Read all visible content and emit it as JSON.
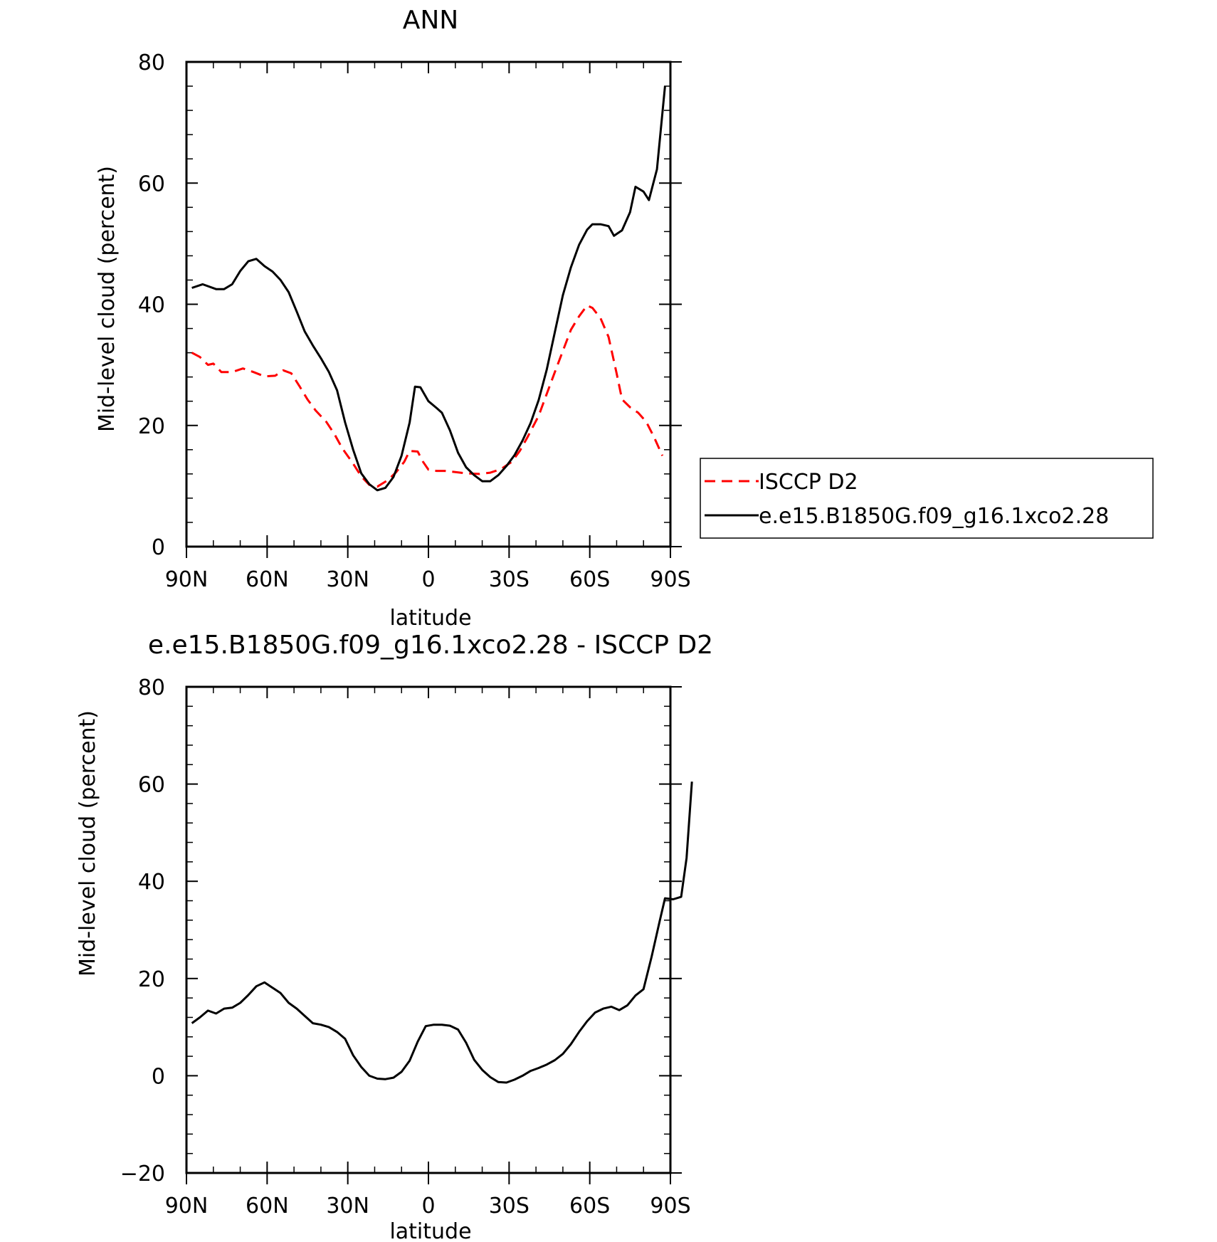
{
  "chart_data": [
    {
      "type": "line",
      "title": "ANN",
      "xlabel": "latitude",
      "ylabel": "Mid-level cloud (percent)",
      "xlim": [
        90,
        -90
      ],
      "ylim": [
        0,
        80
      ],
      "x_ticks": [
        {
          "value": 90,
          "label": "90N"
        },
        {
          "value": 60,
          "label": "60N"
        },
        {
          "value": 30,
          "label": "30N"
        },
        {
          "value": 0,
          "label": "0"
        },
        {
          "value": -30,
          "label": "30S"
        },
        {
          "value": -60,
          "label": "60S"
        },
        {
          "value": -90,
          "label": "90S"
        }
      ],
      "y_ticks": [
        {
          "value": 0,
          "label": "0"
        },
        {
          "value": 20,
          "label": "20"
        },
        {
          "value": 40,
          "label": "40"
        },
        {
          "value": 60,
          "label": "60"
        },
        {
          "value": 80,
          "label": "80"
        }
      ],
      "grid": false,
      "legend_position": "right",
      "series": [
        {
          "name": "ISCCP D2",
          "color": "#ff0000",
          "style": "dashed",
          "points": [
            [
              88,
              32
            ],
            [
              85,
              31.3
            ],
            [
              82,
              30
            ],
            [
              80,
              30.2
            ],
            [
              77,
              28.8
            ],
            [
              73,
              28.8
            ],
            [
              69,
              29.4
            ],
            [
              65,
              28.8
            ],
            [
              61,
              28.1
            ],
            [
              57,
              28.2
            ],
            [
              54,
              29.1
            ],
            [
              51,
              28.6
            ],
            [
              48,
              26.5
            ],
            [
              45,
              24.3
            ],
            [
              42,
              22.5
            ],
            [
              38,
              20.6
            ],
            [
              35,
              18.6
            ],
            [
              32,
              16.2
            ],
            [
              28,
              13.7
            ],
            [
              25,
              11.6
            ],
            [
              22,
              10.2
            ],
            [
              19,
              9.9
            ],
            [
              15,
              11
            ],
            [
              12,
              12.3
            ],
            [
              9,
              14
            ],
            [
              7,
              15.8
            ],
            [
              4,
              15.7
            ],
            [
              2,
              14
            ],
            [
              0,
              12.7
            ],
            [
              -3,
              12.5
            ],
            [
              -6,
              12.5
            ],
            [
              -10,
              12.3
            ],
            [
              -14,
              12.1
            ],
            [
              -19,
              12
            ],
            [
              -23,
              12.2
            ],
            [
              -27,
              12.8
            ],
            [
              -31,
              14
            ],
            [
              -34,
              15.8
            ],
            [
              -37,
              18.2
            ],
            [
              -41,
              21.6
            ],
            [
              -44,
              25.2
            ],
            [
              -47,
              28.8
            ],
            [
              -50,
              32.3
            ],
            [
              -53,
              35.8
            ],
            [
              -56,
              38
            ],
            [
              -59,
              39.8
            ],
            [
              -61,
              39.4
            ],
            [
              -64,
              37.7
            ],
            [
              -67,
              34.6
            ],
            [
              -70,
              28.6
            ],
            [
              -72,
              24.3
            ],
            [
              -75,
              23
            ],
            [
              -78,
              22.1
            ],
            [
              -81,
              20.6
            ],
            [
              -84,
              18
            ],
            [
              -87,
              15
            ]
          ]
        },
        {
          "name": "e.e15.B1850G.f09_g16.1xco2.28",
          "color": "#000000",
          "style": "solid",
          "points": [
            [
              88,
              42.7
            ],
            [
              84,
              43.3
            ],
            [
              79,
              42.5
            ],
            [
              76,
              42.5
            ],
            [
              73,
              43.3
            ],
            [
              70,
              45.5
            ],
            [
              67,
              47.1
            ],
            [
              64,
              47.5
            ],
            [
              61,
              46.3
            ],
            [
              58,
              45.4
            ],
            [
              55,
              44
            ],
            [
              52,
              42
            ],
            [
              49,
              38.8
            ],
            [
              46,
              35.5
            ],
            [
              43,
              33.2
            ],
            [
              40,
              31.1
            ],
            [
              37,
              28.8
            ],
            [
              34,
              25.8
            ],
            [
              31,
              20.5
            ],
            [
              28,
              16
            ],
            [
              25,
              12.1
            ],
            [
              22,
              10.3
            ],
            [
              19,
              9.3
            ],
            [
              16,
              9.7
            ],
            [
              13,
              11.5
            ],
            [
              10,
              15
            ],
            [
              7,
              20.5
            ],
            [
              5,
              26.4
            ],
            [
              3,
              26.3
            ],
            [
              0,
              24
            ],
            [
              -3,
              22.9
            ],
            [
              -5,
              22.1
            ],
            [
              -8,
              19.2
            ],
            [
              -11,
              15.5
            ],
            [
              -14,
              13.1
            ],
            [
              -17,
              11.8
            ],
            [
              -20,
              10.8
            ],
            [
              -23,
              10.8
            ],
            [
              -26,
              11.8
            ],
            [
              -29,
              13.3
            ],
            [
              -32,
              15.1
            ],
            [
              -35,
              17.5
            ],
            [
              -38,
              20.4
            ],
            [
              -41,
              24.2
            ],
            [
              -44,
              29.2
            ],
            [
              -47,
              35.4
            ],
            [
              -50,
              41.5
            ],
            [
              -53,
              46.1
            ],
            [
              -56,
              49.8
            ],
            [
              -59,
              52.3
            ],
            [
              -61,
              53.2
            ],
            [
              -64,
              53.2
            ],
            [
              -67,
              52.9
            ],
            [
              -69,
              51.3
            ],
            [
              -72,
              52.2
            ],
            [
              -75,
              55.2
            ],
            [
              -77,
              59.4
            ],
            [
              -80,
              58.6
            ],
            [
              -82,
              57.2
            ],
            [
              -85,
              62.3
            ],
            [
              -88,
              76
            ]
          ]
        }
      ]
    },
    {
      "type": "line",
      "title": "e.e15.B1850G.f09_g16.1xco2.28 - ISCCP D2",
      "xlabel": "latitude",
      "ylabel": "Mid-level cloud (percent)",
      "xlim": [
        90,
        -90
      ],
      "ylim": [
        -20,
        80
      ],
      "x_ticks": [
        {
          "value": 90,
          "label": "90N"
        },
        {
          "value": 60,
          "label": "60N"
        },
        {
          "value": 30,
          "label": "30N"
        },
        {
          "value": 0,
          "label": "0"
        },
        {
          "value": -30,
          "label": "30S"
        },
        {
          "value": -60,
          "label": "60S"
        },
        {
          "value": -90,
          "label": "90S"
        }
      ],
      "y_ticks": [
        {
          "value": -20,
          "label": "−20"
        },
        {
          "value": 0,
          "label": "0"
        },
        {
          "value": 20,
          "label": "20"
        },
        {
          "value": 40,
          "label": "40"
        },
        {
          "value": 60,
          "label": "60"
        },
        {
          "value": 80,
          "label": "80"
        }
      ],
      "grid": false,
      "series": [
        {
          "color": "#000000",
          "style": "solid",
          "points": [
            [
              88,
              10.8
            ],
            [
              85,
              12
            ],
            [
              82,
              13.4
            ],
            [
              79,
              12.8
            ],
            [
              76,
              13.8
            ],
            [
              73,
              14
            ],
            [
              70,
              15
            ],
            [
              67,
              16.6
            ],
            [
              64,
              18.4
            ],
            [
              61,
              19.2
            ],
            [
              58,
              18.1
            ],
            [
              55,
              17
            ],
            [
              52,
              15
            ],
            [
              49,
              13.8
            ],
            [
              46,
              12.3
            ],
            [
              43,
              10.8
            ],
            [
              40,
              10.5
            ],
            [
              37,
              10
            ],
            [
              34,
              9
            ],
            [
              31,
              7.6
            ],
            [
              28,
              4.2
            ],
            [
              25,
              1.8
            ],
            [
              22,
              0
            ],
            [
              19,
              -0.6
            ],
            [
              16,
              -0.7
            ],
            [
              13,
              -0.4
            ],
            [
              10,
              0.8
            ],
            [
              7,
              3.1
            ],
            [
              4,
              7
            ],
            [
              1,
              10.2
            ],
            [
              -2,
              10.5
            ],
            [
              -5,
              10.5
            ],
            [
              -8,
              10.3
            ],
            [
              -11,
              9.5
            ],
            [
              -14,
              6.8
            ],
            [
              -17,
              3.3
            ],
            [
              -20,
              1.2
            ],
            [
              -23,
              -0.3
            ],
            [
              -26,
              -1.3
            ],
            [
              -29,
              -1.4
            ],
            [
              -32,
              -0.8
            ],
            [
              -35,
              0
            ],
            [
              -38,
              1
            ],
            [
              -41,
              1.6
            ],
            [
              -44,
              2.3
            ],
            [
              -47,
              3.2
            ],
            [
              -50,
              4.5
            ],
            [
              -53,
              6.5
            ],
            [
              -56,
              9
            ],
            [
              -59,
              11.2
            ],
            [
              -62,
              13
            ],
            [
              -65,
              13.8
            ],
            [
              -68,
              14.2
            ],
            [
              -71,
              13.5
            ],
            [
              -74,
              14.5
            ],
            [
              -77,
              16.5
            ],
            [
              -80,
              17.8
            ],
            [
              -83,
              24.5
            ],
            [
              -86,
              31.8
            ],
            [
              -88,
              36.5
            ],
            [
              -91,
              36.3
            ],
            [
              -94,
              36.8
            ],
            [
              -96,
              44.8
            ],
            [
              -98,
              60.5
            ]
          ]
        }
      ]
    }
  ]
}
